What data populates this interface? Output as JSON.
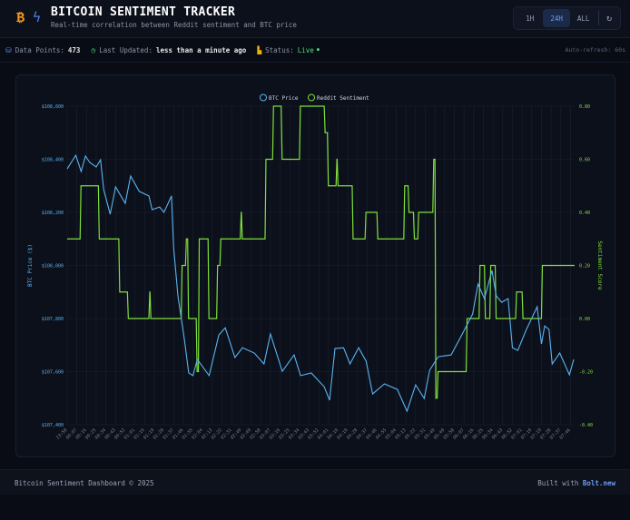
{
  "header": {
    "title": "BITCOIN SENTIMENT TRACKER",
    "subtitle": "Real-time correlation between Reddit sentiment and BTC price",
    "logo_icons": [
      "bitcoin-icon",
      "zap-icon"
    ],
    "ranges": [
      {
        "label": "1H",
        "active": false
      },
      {
        "label": "24H",
        "active": true
      },
      {
        "label": "ALL",
        "active": false
      }
    ],
    "refresh_icon": "refresh-icon"
  },
  "stats": {
    "data_points_label": "Data Points:",
    "data_points": "473",
    "updated_label": "Last Updated:",
    "updated": "less than a minute ago",
    "status_label": "Status:",
    "status": "Live",
    "auto_refresh": "Auto-refresh: 60s"
  },
  "colors": {
    "price": "#5ab4f0",
    "sentiment": "#7ee03a",
    "accent": "#6f9bf5",
    "bitcoin": "#f7931a"
  },
  "chart_data": {
    "type": "line",
    "legend": [
      "BTC Price",
      "Reddit Sentiment"
    ],
    "legend_placement": "top",
    "ylabel_left": "BTC Price ($)",
    "ylabel_right": "Sentiment Score",
    "ylim_left": [
      107400,
      108600
    ],
    "ylim_right": [
      -0.4,
      0.8
    ],
    "yticks_left": [
      "$107,400",
      "$107,600",
      "$107,800",
      "$108,000",
      "$108,200",
      "$108,400",
      "$108,600"
    ],
    "yticks_right": [
      "-0.40",
      "-0.20",
      "0.00",
      "0.20",
      "0.40",
      "0.60",
      "0.80"
    ],
    "grid": true,
    "xticks": [
      "23:58",
      "00:07",
      "00:16",
      "00:25",
      "00:34",
      "00:43",
      "00:52",
      "01:01",
      "01:10",
      "01:19",
      "01:28",
      "01:37",
      "01:46",
      "01:55",
      "02:04",
      "02:13",
      "02:22",
      "02:31",
      "02:40",
      "02:49",
      "02:58",
      "03:07",
      "03:16",
      "03:25",
      "03:34",
      "03:43",
      "03:52",
      "04:01",
      "04:10",
      "04:19",
      "04:28",
      "04:37",
      "04:46",
      "04:55",
      "05:04",
      "05:13",
      "05:22",
      "05:31",
      "05:40",
      "05:49",
      "05:58",
      "06:07",
      "06:16",
      "06:25",
      "06:34",
      "06:43",
      "06:52",
      "07:01",
      "07:10",
      "07:19",
      "07:28",
      "07:37",
      "07:46"
    ],
    "price": [
      [
        "23:58",
        108364
      ],
      [
        "00:06",
        108415
      ],
      [
        "00:11",
        108354
      ],
      [
        "00:15",
        108412
      ],
      [
        "00:19",
        108388
      ],
      [
        "00:25",
        108371
      ],
      [
        "00:29",
        108398
      ],
      [
        "00:32",
        108285
      ],
      [
        "00:38",
        108193
      ],
      [
        "00:43",
        108296
      ],
      [
        "00:52",
        108234
      ],
      [
        "00:57",
        108337
      ],
      [
        "01:05",
        108279
      ],
      [
        "01:14",
        108262
      ],
      [
        "01:17",
        108210
      ],
      [
        "01:24",
        108220
      ],
      [
        "01:28",
        108200
      ],
      [
        "01:35",
        108262
      ],
      [
        "01:37",
        108067
      ],
      [
        "01:41",
        107885
      ],
      [
        "01:47",
        107721
      ],
      [
        "01:51",
        107595
      ],
      [
        "01:55",
        107585
      ],
      [
        "01:59",
        107646
      ],
      [
        "02:10",
        107585
      ],
      [
        "02:19",
        107738
      ],
      [
        "02:25",
        107765
      ],
      [
        "02:34",
        107653
      ],
      [
        "02:41",
        107690
      ],
      [
        "02:52",
        107670
      ],
      [
        "03:01",
        107629
      ],
      [
        "03:07",
        107742
      ],
      [
        "03:18",
        107601
      ],
      [
        "03:29",
        107663
      ],
      [
        "03:35",
        107585
      ],
      [
        "03:45",
        107595
      ],
      [
        "03:57",
        107543
      ],
      [
        "04:02",
        107492
      ],
      [
        "04:07",
        107687
      ],
      [
        "04:15",
        107690
      ],
      [
        "04:21",
        107629
      ],
      [
        "04:29",
        107690
      ],
      [
        "04:36",
        107639
      ],
      [
        "04:42",
        107516
      ],
      [
        "04:53",
        107554
      ],
      [
        "05:05",
        107533
      ],
      [
        "05:14",
        107451
      ],
      [
        "05:22",
        107550
      ],
      [
        "05:30",
        107499
      ],
      [
        "05:35",
        107605
      ],
      [
        "05:43",
        107656
      ],
      [
        "05:55",
        107663
      ],
      [
        "06:04",
        107731
      ],
      [
        "06:15",
        107817
      ],
      [
        "06:20",
        107930
      ],
      [
        "06:26",
        107875
      ],
      [
        "06:33",
        107981
      ],
      [
        "06:37",
        107885
      ],
      [
        "06:42",
        107861
      ],
      [
        "06:48",
        107875
      ],
      [
        "06:52",
        107690
      ],
      [
        "06:57",
        107680
      ],
      [
        "07:05",
        107759
      ],
      [
        "07:15",
        107844
      ],
      [
        "07:19",
        107704
      ],
      [
        "07:22",
        107772
      ],
      [
        "07:26",
        107759
      ],
      [
        "07:29",
        107629
      ],
      [
        "07:36",
        107670
      ],
      [
        "07:45",
        107588
      ],
      [
        "07:49",
        107646
      ]
    ],
    "sentiment": [
      [
        "23:58",
        0.3
      ],
      [
        "00:10",
        0.5
      ],
      [
        "00:27",
        0.3
      ],
      [
        "00:46",
        0.1
      ],
      [
        "00:54",
        0.0
      ],
      [
        "01:14",
        0.1
      ],
      [
        "01:15",
        0.0
      ],
      [
        "01:44",
        0.2
      ],
      [
        "01:48",
        0.3
      ],
      [
        "01:50",
        0.0
      ],
      [
        "01:58",
        -0.2
      ],
      [
        "02:00",
        0.3
      ],
      [
        "02:09",
        0.0
      ],
      [
        "02:17",
        0.2
      ],
      [
        "02:20",
        0.3
      ],
      [
        "02:39",
        0.4
      ],
      [
        "02:40",
        0.3
      ],
      [
        "03:02",
        0.6
      ],
      [
        "03:09",
        0.8
      ],
      [
        "03:17",
        0.6
      ],
      [
        "03:34",
        0.8
      ],
      [
        "03:57",
        0.7
      ],
      [
        "04:00",
        0.5
      ],
      [
        "04:08",
        0.6
      ],
      [
        "04:09",
        0.5
      ],
      [
        "04:23",
        0.3
      ],
      [
        "04:35",
        0.4
      ],
      [
        "04:46",
        0.3
      ],
      [
        "05:11",
        0.5
      ],
      [
        "05:15",
        0.4
      ],
      [
        "05:20",
        0.3
      ],
      [
        "05:24",
        0.4
      ],
      [
        "05:38",
        0.6
      ],
      [
        "05:40",
        -0.3
      ],
      [
        "05:42",
        -0.2
      ],
      [
        "06:09",
        0.0
      ],
      [
        "06:21",
        0.2
      ],
      [
        "06:26",
        0.0
      ],
      [
        "06:31",
        0.2
      ],
      [
        "06:36",
        0.0
      ],
      [
        "06:55",
        0.1
      ],
      [
        "07:01",
        0.0
      ],
      [
        "07:19",
        0.2
      ],
      [
        "07:49",
        0.2
      ]
    ]
  },
  "footer": {
    "copyright": "Bitcoin Sentiment Dashboard © 2025",
    "built_with": "Built with",
    "bolt": "Bolt.new"
  }
}
